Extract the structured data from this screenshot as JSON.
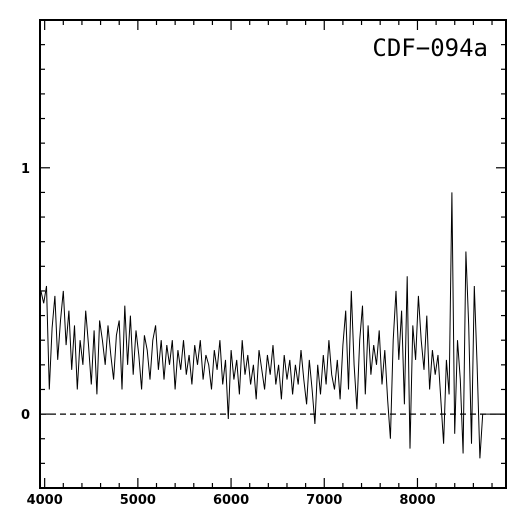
{
  "chart_data": {
    "type": "line",
    "title": "CDF−094a",
    "xlabel": "",
    "ylabel": "",
    "xlim": [
      3950,
      8950
    ],
    "ylim": [
      -0.3,
      1.6
    ],
    "x_ticks": [
      4000,
      5000,
      6000,
      7000,
      8000
    ],
    "x_tick_labels": [
      "4000",
      "5000",
      "6000",
      "7000",
      "8000"
    ],
    "y_ticks": [
      0,
      1
    ],
    "y_tick_labels": [
      "0",
      "1"
    ],
    "grid": false,
    "reference_line": {
      "y": 0,
      "style": "dashed"
    },
    "series": [
      {
        "x": [
          3960,
          3990,
          4020,
          4050,
          4080,
          4110,
          4140,
          4170,
          4200,
          4230,
          4260,
          4290,
          4320,
          4350,
          4380,
          4410,
          4440,
          4470,
          4500,
          4530,
          4560,
          4590,
          4620,
          4650,
          4680,
          4710,
          4740,
          4770,
          4800,
          4830,
          4860,
          4890,
          4920,
          4950,
          4980,
          5010,
          5040,
          5070,
          5100,
          5130,
          5160,
          5190,
          5220,
          5250,
          5280,
          5310,
          5340,
          5370,
          5400,
          5430,
          5460,
          5490,
          5520,
          5550,
          5580,
          5610,
          5640,
          5670,
          5700,
          5730,
          5760,
          5790,
          5820,
          5850,
          5880,
          5910,
          5940,
          5970,
          6000,
          6030,
          6060,
          6090,
          6120,
          6150,
          6180,
          6210,
          6240,
          6270,
          6300,
          6330,
          6360,
          6390,
          6420,
          6450,
          6480,
          6510,
          6540,
          6570,
          6600,
          6630,
          6660,
          6690,
          6720,
          6750,
          6780,
          6810,
          6840,
          6870,
          6900,
          6930,
          6960,
          6990,
          7020,
          7050,
          7080,
          7110,
          7140,
          7170,
          7200,
          7230,
          7260,
          7290,
          7320,
          7350,
          7380,
          7410,
          7440,
          7470,
          7500,
          7530,
          7560,
          7590,
          7620,
          7650,
          7680,
          7710,
          7740,
          7770,
          7800,
          7830,
          7860,
          7890,
          7920,
          7950,
          7980,
          8010,
          8040,
          8070,
          8100,
          8130,
          8160,
          8190,
          8220,
          8250,
          8280,
          8310,
          8340,
          8370,
          8400,
          8430,
          8460,
          8490,
          8520,
          8550,
          8580,
          8610,
          8640,
          8670,
          8700,
          8750,
          8800,
          8850,
          8900
        ],
        "values": [
          0.5,
          0.45,
          0.52,
          0.1,
          0.35,
          0.48,
          0.22,
          0.38,
          0.5,
          0.28,
          0.42,
          0.18,
          0.36,
          0.1,
          0.3,
          0.2,
          0.42,
          0.28,
          0.12,
          0.34,
          0.08,
          0.38,
          0.3,
          0.2,
          0.36,
          0.24,
          0.14,
          0.32,
          0.38,
          0.1,
          0.44,
          0.2,
          0.4,
          0.16,
          0.34,
          0.24,
          0.1,
          0.32,
          0.26,
          0.14,
          0.3,
          0.36,
          0.18,
          0.3,
          0.14,
          0.28,
          0.2,
          0.3,
          0.1,
          0.26,
          0.18,
          0.3,
          0.16,
          0.24,
          0.12,
          0.28,
          0.2,
          0.3,
          0.14,
          0.24,
          0.2,
          0.1,
          0.26,
          0.18,
          0.3,
          0.12,
          0.22,
          -0.02,
          0.26,
          0.14,
          0.22,
          0.08,
          0.3,
          0.16,
          0.24,
          0.12,
          0.2,
          0.06,
          0.26,
          0.18,
          0.1,
          0.24,
          0.16,
          0.28,
          0.12,
          0.2,
          0.06,
          0.24,
          0.14,
          0.22,
          0.08,
          0.2,
          0.12,
          0.26,
          0.14,
          0.04,
          0.22,
          0.1,
          -0.04,
          0.2,
          0.08,
          0.24,
          0.12,
          0.3,
          0.16,
          0.1,
          0.22,
          0.06,
          0.28,
          0.42,
          0.1,
          0.5,
          0.2,
          0.02,
          0.3,
          0.44,
          0.08,
          0.36,
          0.16,
          0.28,
          0.2,
          0.34,
          0.12,
          0.26,
          0.06,
          -0.1,
          0.3,
          0.5,
          0.22,
          0.42,
          0.04,
          0.56,
          -0.14,
          0.36,
          0.22,
          0.48,
          0.3,
          0.18,
          0.4,
          0.1,
          0.26,
          0.16,
          0.24,
          0.06,
          -0.12,
          0.22,
          0.08,
          0.9,
          -0.08,
          0.3,
          0.14,
          -0.16,
          0.66,
          0.36,
          -0.12,
          0.52,
          0.2,
          -0.18,
          0.0,
          0.0,
          0.0,
          0.0,
          0.0
        ]
      }
    ]
  }
}
